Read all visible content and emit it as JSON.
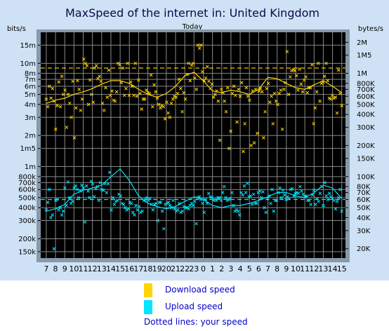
{
  "chart_data": {
    "type": "line",
    "title": "MaxSpeed of the internet in: United Kingdom",
    "subtitle": "Today",
    "ylabel_left": "bits/s",
    "ylabel_right": "bytes/s",
    "yscale": "log",
    "ylim": [
      130000,
      20000000
    ],
    "left_ticks": [
      {
        "label": "15m",
        "value": 15000000
      },
      {
        "label": "10m",
        "value": 10000000
      },
      {
        "label": "8m",
        "value": 8000000
      },
      {
        "label": "7m",
        "value": 7000000
      },
      {
        "label": "6m",
        "value": 6000000
      },
      {
        "label": "5m",
        "value": 5000000
      },
      {
        "label": "4m",
        "value": 4000000
      },
      {
        "label": "3m",
        "value": 3000000
      },
      {
        "label": "2m",
        "value": 2000000
      },
      {
        "label": "1m5",
        "value": 1500000
      },
      {
        "label": "1m",
        "value": 1000000
      },
      {
        "label": "800k",
        "value": 800000
      },
      {
        "label": "700k",
        "value": 700000
      },
      {
        "label": "600k",
        "value": 600000
      },
      {
        "label": "500k",
        "value": 500000
      },
      {
        "label": "400k",
        "value": 400000
      },
      {
        "label": "300k",
        "value": 300000
      },
      {
        "label": "200k",
        "value": 200000
      },
      {
        "label": "150k",
        "value": 150000
      }
    ],
    "right_ticks": [
      {
        "label": "2M",
        "value": 2000000
      },
      {
        "label": "1M5",
        "value": 1500000
      },
      {
        "label": "1M",
        "value": 1000000
      },
      {
        "label": "800K",
        "value": 800000
      },
      {
        "label": "700K",
        "value": 700000
      },
      {
        "label": "600K",
        "value": 600000
      },
      {
        "label": "500K",
        "value": 500000
      },
      {
        "label": "400K",
        "value": 400000
      },
      {
        "label": "300K",
        "value": 300000
      },
      {
        "label": "200K",
        "value": 200000
      },
      {
        "label": "150K",
        "value": 150000
      },
      {
        "label": "100K",
        "value": 100000
      },
      {
        "label": "80K",
        "value": 80000
      },
      {
        "label": "70K",
        "value": 70000
      },
      {
        "label": "60K",
        "value": 60000
      },
      {
        "label": "50K",
        "value": 50000
      },
      {
        "label": "40K",
        "value": 40000
      },
      {
        "label": "30K",
        "value": 30000
      },
      {
        "label": "20K",
        "value": 20000
      }
    ],
    "hour_labels": [
      "7",
      "8",
      "9",
      "10",
      "11",
      "12",
      "13",
      "14",
      "15",
      "16",
      "17",
      "18",
      "19",
      "20",
      "21",
      "22",
      "23",
      "0",
      "1",
      "2",
      "3",
      "4",
      "5",
      "6",
      "7",
      "8",
      "9",
      "10",
      "11",
      "12",
      "13",
      "14",
      "15"
    ],
    "series": [
      {
        "name": "Download speed",
        "color": "#ffd400",
        "avg": [
          4100000,
          4400000,
          4600000,
          5000000,
          5300000,
          5700000,
          6300000,
          6800000,
          6800000,
          6400000,
          5600000,
          5000000,
          4700000,
          5100000,
          6000000,
          7600000,
          8200000,
          6800000,
          5400000,
          5200000,
          5500000,
          5300000,
          5000000,
          5600000,
          7300000,
          7100000,
          6400000,
          5800000,
          5600000,
          6200000,
          6800000,
          6000000,
          5200000
        ],
        "samples": [
          4500000,
          3800000,
          6000000,
          4600000,
          5700000,
          4300000,
          2300000,
          3900000,
          6600000,
          3800000,
          7500000,
          5000000,
          5500000,
          2400000,
          5000000,
          4100000,
          3000000,
          6700000,
          1900000,
          3700000,
          6800000,
          5600000,
          3500000,
          4500000,
          11000000,
          10000000,
          9500000,
          4000000,
          6900000,
          5000000,
          4200000,
          9000000,
          9500000,
          7100000,
          7500000,
          6700000,
          4100000,
          3500000,
          5800000,
          4700000,
          8600000,
          4900000,
          5400000,
          4400000,
          4300000,
          5300000,
          10000000,
          9700000,
          6500000,
          9000000,
          4900000,
          5700000,
          10000000,
          4900000,
          6600000,
          6000000,
          4900000,
          10000000,
          4800000,
          6900000,
          5100000,
          3600000,
          4500000,
          4500000,
          5500000,
          5200000,
          5100000,
          7700000,
          3800000,
          6200000,
          5300000,
          4600000,
          4000000,
          3700000,
          3900000,
          3800000,
          2900000,
          4200000,
          3300000,
          3000000,
          4100000,
          4500000,
          4800000,
          4700000,
          5100000,
          7000000,
          5700000,
          3400000,
          5200000,
          4500000,
          7800000,
          10000000,
          6800000,
          9600000,
          10000000,
          7200000,
          5600000,
          15000000,
          14000000,
          15000000,
          8300000,
          6800000,
          7200000,
          9300000,
          6700000,
          5700000,
          6300000,
          4700000,
          5000000,
          5400000,
          4300000,
          1800000,
          5600000,
          5200000,
          4300000,
          3400000,
          5800000,
          1500000,
          2200000,
          5100000,
          6000000,
          4900000,
          2700000,
          5600000,
          4800000,
          6500000,
          1400000,
          2600000,
          5800000,
          4800000,
          4400000,
          1600000,
          5400000,
          1700000,
          5600000,
          2100000,
          5400000,
          5700000,
          5300000,
          1900000,
          3400000,
          5700000,
          6400000,
          4200000,
          4800000,
          2600000,
          5100000,
          4300000,
          4000000,
          5100000,
          5500000,
          2300000,
          5600000,
          6500000,
          13000000,
          5000000,
          7400000,
          8500000,
          8700000,
          8500000,
          7600000,
          5500000,
          8800000,
          6300000,
          5300000,
          6900000,
          7400000,
          5200000,
          5800000,
          5800000,
          9700000,
          2600000,
          3700000,
          5300000,
          10000000,
          4300000,
          6400000,
          6600000,
          7500000,
          10000000,
          6800000,
          4600000,
          4500000,
          4900000,
          4600000,
          4700000,
          3300000,
          8600000,
          5100000,
          3900000
        ],
        "user_speed": 9000000
      },
      {
        "name": "Upload speed",
        "color": "#00e6ff",
        "avg": [
          370000,
          390000,
          430000,
          540000,
          590000,
          620000,
          660000,
          800000,
          950000,
          730000,
          520000,
          440000,
          410000,
          390000,
          410000,
          460000,
          510000,
          480000,
          420000,
          400000,
          420000,
          420000,
          440000,
          470000,
          510000,
          560000,
          560000,
          520000,
          500000,
          560000,
          660000,
          620000,
          490000
        ],
        "samples": [
          380000,
          450000,
          600000,
          320000,
          340000,
          160000,
          470000,
          480000,
          380000,
          400000,
          340000,
          370000,
          620000,
          420000,
          710000,
          500000,
          440000,
          460000,
          620000,
          650000,
          600000,
          500000,
          580000,
          660000,
          620000,
          290000,
          650000,
          580000,
          500000,
          720000,
          680000,
          510000,
          610000,
          640000,
          470000,
          700000,
          600000,
          590000,
          680000,
          560000,
          680000,
          880000,
          380000,
          500000,
          430000,
          460000,
          470000,
          540000,
          520000,
          440000,
          430000,
          400000,
          380000,
          390000,
          450000,
          440000,
          360000,
          340000,
          420000,
          380000,
          410000,
          360000,
          370000,
          470000,
          480000,
          500000,
          470000,
          490000,
          430000,
          380000,
          430000,
          440000,
          300000,
          450000,
          450000,
          370000,
          250000,
          430000,
          440000,
          450000,
          420000,
          400000,
          470000,
          390000,
          370000,
          380000,
          440000,
          360000,
          370000,
          410000,
          400000,
          400000,
          390000,
          420000,
          440000,
          420000,
          460000,
          280000,
          500000,
          510000,
          480000,
          440000,
          360000,
          480000,
          440000,
          550000,
          510000,
          500000,
          470000,
          480000,
          470000,
          500000,
          500000,
          470000,
          560000,
          640000,
          500000,
          470000,
          480000,
          490000,
          560000,
          420000,
          370000,
          380000,
          370000,
          340000,
          560000,
          530000,
          650000,
          560000,
          690000,
          510000,
          520000,
          430000,
          540000,
          440000,
          440000,
          560000,
          580000,
          500000,
          570000,
          400000,
          360000,
          490000,
          520000,
          440000,
          600000,
          370000,
          470000,
          470000,
          560000,
          620000,
          500000,
          590000,
          530000,
          480000,
          510000,
          490000,
          600000,
          610000,
          520000,
          550000,
          560000,
          550000,
          640000,
          580000,
          540000,
          510000,
          520000,
          470000,
          470000,
          430000,
          530000,
          590000,
          430000,
          490000,
          460000,
          550000,
          640000,
          420000,
          700000,
          520000,
          480000,
          550000,
          510000,
          490000,
          470000,
          390000,
          460000,
          500000,
          600000,
          370000
        ],
        "user_speed": 480000
      }
    ],
    "legend": [
      "Download speed",
      "Upload speed"
    ],
    "note": "Dotted lines: your speed",
    "grid": true,
    "background": "#000000",
    "grid_color": "#8a8a8a"
  }
}
